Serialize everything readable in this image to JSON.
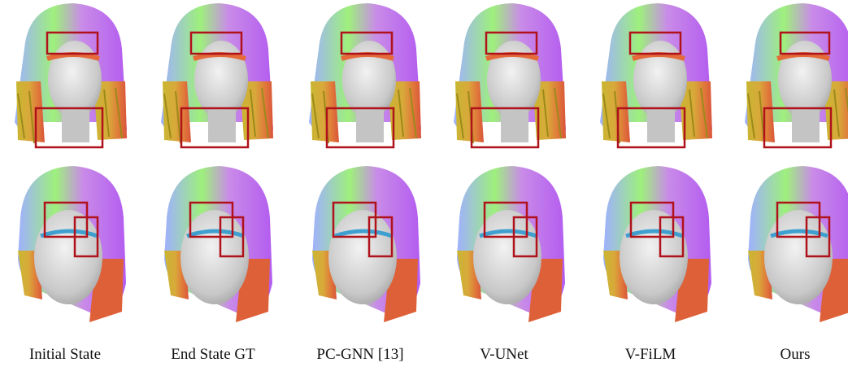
{
  "captions": [
    "Initial State",
    "End State GT",
    "PC-GNN [13]",
    "V-UNet",
    "V-FiLM",
    "Ours"
  ]
}
